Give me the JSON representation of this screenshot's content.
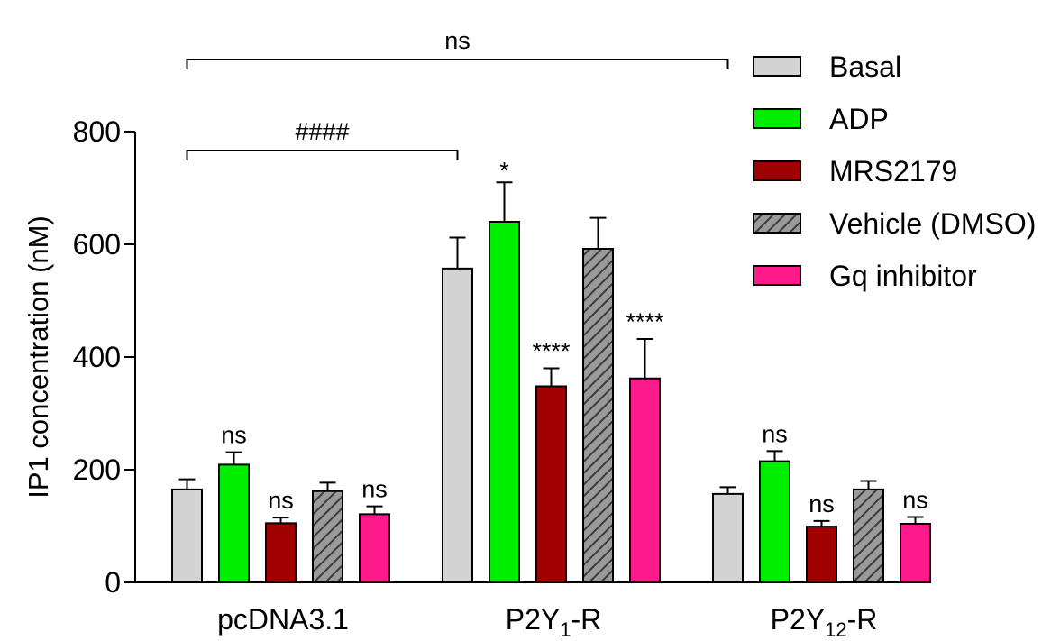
{
  "chart_data": {
    "type": "bar",
    "ylabel": "IP1 concentration (nM)",
    "ylim": [
      0,
      800
    ],
    "yticks": [
      "0",
      "200",
      "400",
      "600",
      "800"
    ],
    "categories": [
      {
        "main": "pcDNA3.1",
        "sub": "",
        "suffix": ""
      },
      {
        "main": "P2Y",
        "sub": "1",
        "suffix": "-R"
      },
      {
        "main": "P2Y",
        "sub": "12",
        "suffix": "-R"
      }
    ],
    "series": [
      {
        "name": "Basal",
        "color": "#d3d3d3",
        "pattern": "solid",
        "values": [
          165,
          557,
          157
        ],
        "errors": [
          18,
          55,
          12
        ],
        "sig": [
          "",
          "",
          ""
        ]
      },
      {
        "name": "ADP",
        "color": "#00ee00",
        "pattern": "solid",
        "values": [
          209,
          640,
          215
        ],
        "errors": [
          22,
          70,
          18
        ],
        "sig": [
          "ns",
          "*",
          "ns"
        ]
      },
      {
        "name": "MRS2179",
        "color": "#a00000",
        "pattern": "solid",
        "values": [
          105,
          348,
          99
        ],
        "errors": [
          10,
          32,
          10
        ],
        "sig": [
          "ns",
          "****",
          "ns"
        ]
      },
      {
        "name": "Vehicle (DMSO)",
        "color": "#9a9a9a",
        "pattern": "hatch",
        "values": [
          162,
          592,
          165
        ],
        "errors": [
          15,
          55,
          15
        ],
        "sig": [
          "",
          "",
          ""
        ]
      },
      {
        "name": "Gq inhibitor",
        "color": "#ff1a8c",
        "pattern": "solid",
        "values": [
          121,
          362,
          104
        ],
        "errors": [
          14,
          70,
          12
        ],
        "sig": [
          "ns",
          "****",
          "ns"
        ]
      }
    ],
    "brackets": [
      {
        "label": "####",
        "from_category": 0,
        "to_category": 1
      },
      {
        "label": "ns",
        "from_category": 0,
        "to_category": 2
      }
    ],
    "legend": "top-right",
    "grid": false
  }
}
